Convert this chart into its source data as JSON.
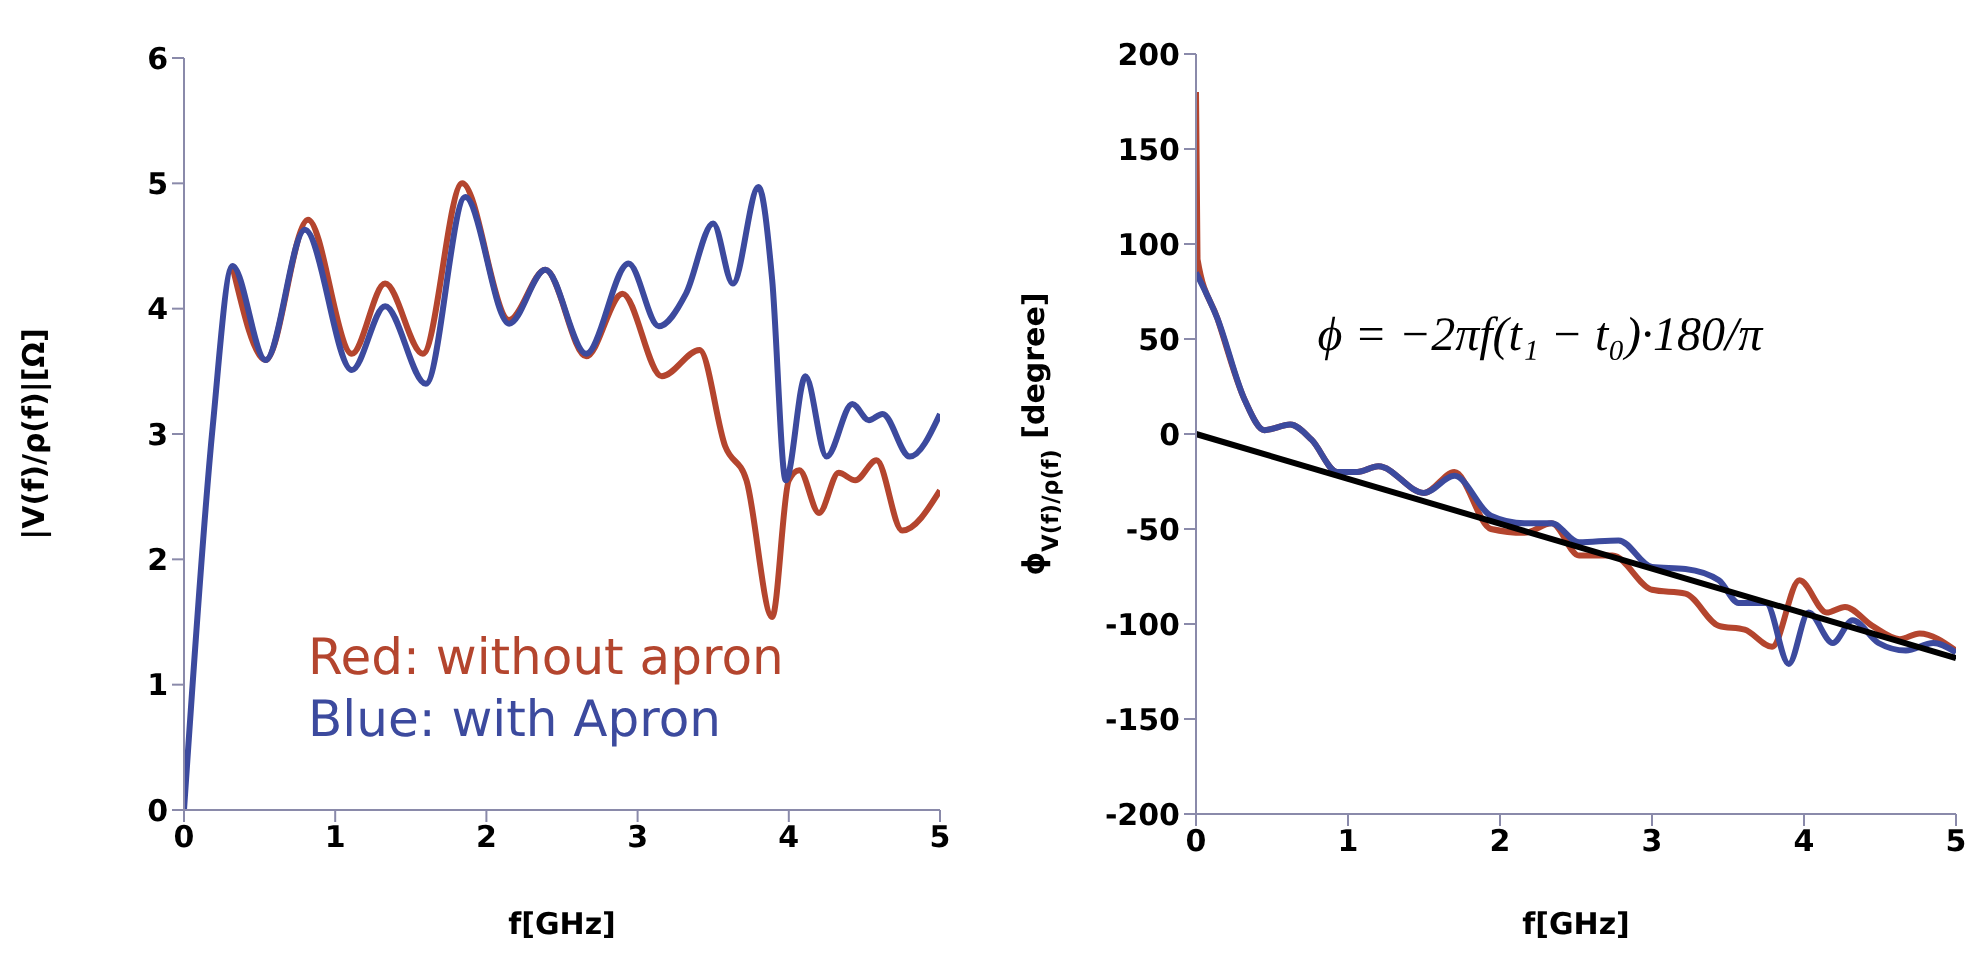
{
  "chart_data": [
    {
      "type": "line",
      "xlabel": "f[GHz]",
      "ylabel": "|V(f)/ρ(f)|[Ω]",
      "xlim": [
        0,
        5
      ],
      "xticks": [
        0,
        1,
        2,
        3,
        4,
        5
      ],
      "ylim": [
        0,
        6
      ],
      "yticks": [
        0,
        1,
        2,
        3,
        4,
        5,
        6
      ],
      "grid": false,
      "legend": "bottom left",
      "marker": "none",
      "line_style": "solid",
      "series": [
        {
          "name": "Red: without apron",
          "color": "#b4452e",
          "x": [
            0.32,
            0.54,
            0.82,
            1.11,
            1.33,
            1.58,
            1.84,
            2.15,
            2.39,
            2.66,
            2.9,
            3.16,
            3.41,
            3.58,
            3.72,
            3.89,
            4.0,
            4.07,
            4.2,
            4.33,
            4.44,
            4.58,
            4.75,
            5.0
          ],
          "values": [
            4.34,
            3.59,
            4.71,
            3.64,
            4.2,
            3.64,
            5.0,
            3.91,
            4.31,
            3.62,
            4.12,
            3.46,
            3.67,
            2.9,
            2.63,
            1.54,
            2.63,
            2.71,
            2.37,
            2.69,
            2.63,
            2.79,
            2.23,
            2.55
          ]
        },
        {
          "name": "Blue: with Apron",
          "color": "#3c4a9e",
          "x": [
            0,
            0.19,
            0.32,
            0.54,
            0.8,
            1.11,
            1.33,
            1.6,
            1.86,
            2.15,
            2.39,
            2.66,
            2.94,
            3.14,
            3.32,
            3.5,
            3.63,
            3.8,
            3.89,
            3.98,
            4.11,
            4.25,
            4.42,
            4.53,
            4.62,
            4.8,
            5.0
          ],
          "values": [
            0,
            3.06,
            4.34,
            3.59,
            4.63,
            3.51,
            4.02,
            3.4,
            4.89,
            3.88,
            4.31,
            3.64,
            4.36,
            3.86,
            4.12,
            4.68,
            4.2,
            4.97,
            4.23,
            2.63,
            3.46,
            2.82,
            3.24,
            3.11,
            3.16,
            2.82,
            3.16
          ]
        }
      ]
    },
    {
      "type": "line",
      "xlabel": "f[GHz]",
      "ylabel": "ϕ$_{V(f)/ρ(f)}$[degree]",
      "xlim": [
        0,
        5
      ],
      "xticks": [
        0,
        1,
        2,
        3,
        4,
        5
      ],
      "ylim": [
        -200,
        200
      ],
      "yticks": [
        -200,
        -150,
        -100,
        -50,
        0,
        50,
        100,
        150,
        200
      ],
      "grid": false,
      "legend": false,
      "marker": "none",
      "line_style": "solid",
      "annotations": [
        "ϕ = −2πf(t₁ − t₀)·180/π"
      ],
      "series": [
        {
          "color": "#b4452e",
          "x": [
            0,
            0.01,
            0.14,
            0.32,
            0.45,
            0.62,
            0.76,
            0.93,
            1.06,
            1.2,
            1.5,
            1.7,
            1.94,
            2.16,
            2.34,
            2.52,
            2.74,
            3.0,
            3.22,
            3.44,
            3.61,
            3.79,
            3.97,
            4.15,
            4.27,
            4.45,
            4.63,
            4.76,
            5.0
          ],
          "values": [
            180,
            92,
            61,
            18,
            2,
            5,
            -3,
            -20,
            -20,
            -17,
            -31,
            -20,
            -50,
            -52,
            -47,
            -64,
            -64,
            -82,
            -84,
            -101,
            -103,
            -112,
            -77,
            -94,
            -91,
            -101,
            -108,
            -105,
            -114
          ]
        },
        {
          "color": "#3c4a9e",
          "x": [
            0,
            0.14,
            0.32,
            0.45,
            0.62,
            0.76,
            0.93,
            1.06,
            1.2,
            1.5,
            1.7,
            1.94,
            2.16,
            2.34,
            2.52,
            2.78,
            3.0,
            3.22,
            3.44,
            3.57,
            3.75,
            3.9,
            4.03,
            4.19,
            4.32,
            4.49,
            4.67,
            4.85,
            5.0
          ],
          "values": [
            85,
            61,
            18,
            2,
            5,
            -3,
            -20,
            -20,
            -17,
            -31,
            -22,
            -43,
            -47,
            -47,
            -57,
            -56,
            -70,
            -71,
            -77,
            -89,
            -89,
            -121,
            -94,
            -110,
            -98,
            -110,
            -114,
            -110,
            -115
          ]
        },
        {
          "color": "#000000",
          "x": [
            0,
            5
          ],
          "values": [
            0,
            -118
          ]
        }
      ]
    }
  ]
}
